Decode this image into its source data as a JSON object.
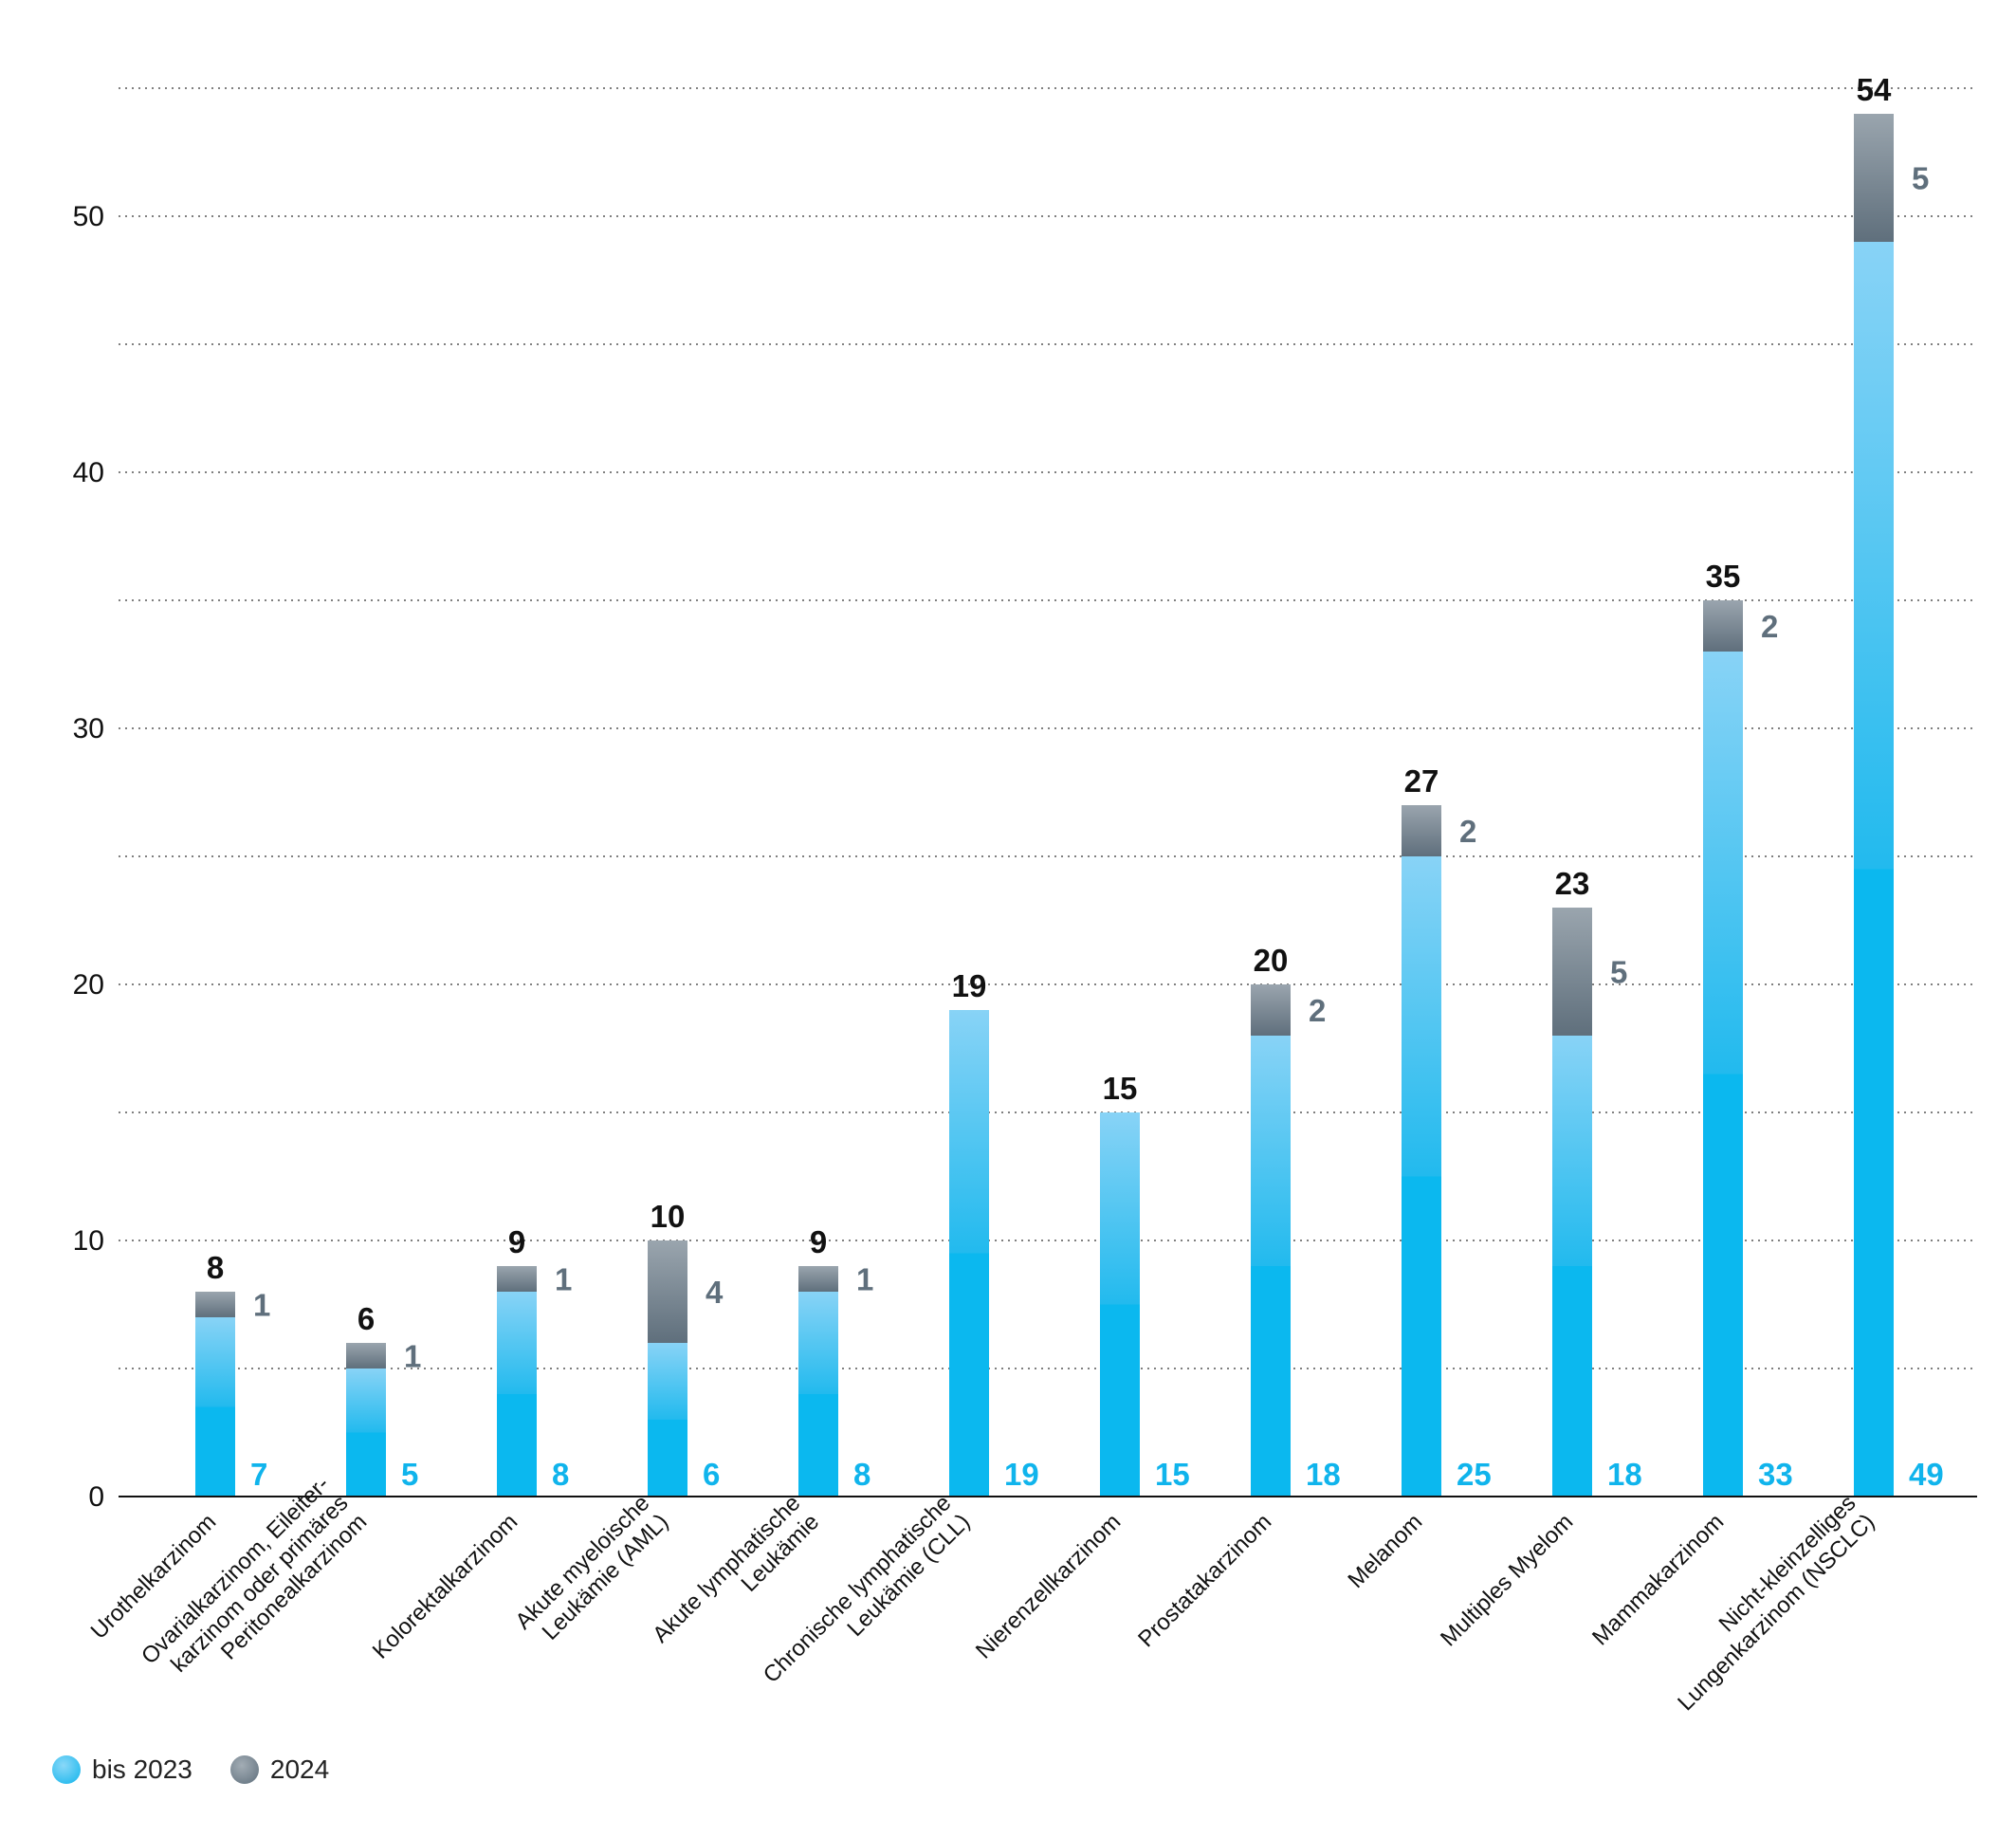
{
  "chart_data": {
    "type": "bar",
    "stacked": true,
    "categories": [
      "Urothelkarzinom",
      "Ovarialkarzinom, Eileiter-\nkarzinom oder primäres\nPeritonealkarzinom",
      "Kolorektalkarzinom",
      "Akute myeloische\nLeukämie (AML)",
      "Akute lymphatische\nLeukämie",
      "Chronische lymphatische\nLeukämie (CLL)",
      "Nierenzellkarzinom",
      "Prostatakarzinom",
      "Melanom",
      "Multiples Myelom",
      "Mammakarzinom",
      "Nicht-kleinzelliges\nLungenkarzinom (NSCLC)"
    ],
    "series": [
      {
        "name": "bis 2023",
        "values": [
          7,
          5,
          8,
          6,
          8,
          19,
          15,
          18,
          25,
          18,
          33,
          49
        ],
        "color": "#10b4ec"
      },
      {
        "name": "2024",
        "values": [
          1,
          1,
          1,
          4,
          1,
          0,
          0,
          2,
          2,
          5,
          2,
          5
        ],
        "color": "#5f6f7c"
      }
    ],
    "totals": [
      8,
      6,
      9,
      10,
      9,
      19,
      15,
      20,
      27,
      23,
      35,
      54
    ],
    "yticks": [
      0,
      10,
      20,
      30,
      40,
      50
    ],
    "ylim": [
      0,
      55
    ],
    "grid": "dotted horizontal every 5",
    "legend_position": "bottom-left",
    "title": "",
    "xlabel": "",
    "ylabel": ""
  },
  "legend": {
    "items": [
      {
        "label": "bis 2023",
        "icon": "light-blue-dot-icon"
      },
      {
        "label": "2024",
        "icon": "gray-dot-icon"
      }
    ]
  }
}
